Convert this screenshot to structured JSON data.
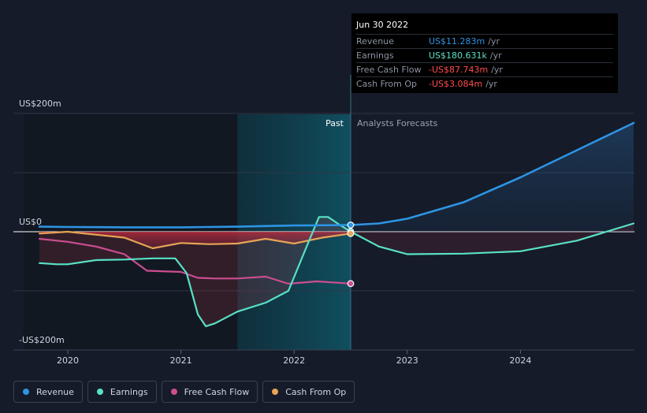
{
  "chart_data": {
    "type": "line",
    "y_ticks": [
      {
        "label": "US$200m",
        "value": 200
      },
      {
        "label": "US$0",
        "value": 0
      },
      {
        "label": "-US$200m",
        "value": -200
      }
    ],
    "x_ticks": [
      "2020",
      "2021",
      "2022",
      "2023",
      "2024"
    ],
    "past_label": "Past",
    "forecast_label": "Analysts Forecasts",
    "highlight_date": 2022.5,
    "series": [
      {
        "name": "Revenue",
        "color": "#2d94e3",
        "x": [
          2019.75,
          2020.0,
          2020.5,
          2021.0,
          2021.5,
          2022.0,
          2022.5
        ],
        "y": [
          8.5,
          8.0,
          7.5,
          7.5,
          8.5,
          10.5,
          11.283
        ],
        "forecast_x": [
          2022.5,
          2022.75,
          2023.0,
          2023.5,
          2024.0,
          2024.5,
          2025.0
        ],
        "forecast_y": [
          11.283,
          14,
          22,
          50,
          92,
          138,
          184
        ]
      },
      {
        "name": "Earnings",
        "color": "#58e1c5",
        "x": [
          2019.75,
          2019.9,
          2020.0,
          2020.25,
          2020.5,
          2020.75,
          2020.95,
          2021.05,
          2021.15,
          2021.22,
          2021.3,
          2021.5,
          2021.75,
          2021.95,
          2022.1,
          2022.22,
          2022.3,
          2022.4,
          2022.5
        ],
        "y": [
          -53,
          -55,
          -55,
          -48,
          -47,
          -45,
          -45,
          -70,
          -140,
          -160,
          -155,
          -135,
          -120,
          -100,
          -30,
          25,
          25,
          12,
          0.18
        ],
        "forecast_x": [
          2022.5,
          2022.75,
          2023.0,
          2023.5,
          2024.0,
          2024.5,
          2025.0
        ],
        "forecast_y": [
          0.18,
          -25,
          -38,
          -37,
          -33,
          -15,
          14
        ]
      },
      {
        "name": "Free Cash Flow",
        "color": "#cb4d90",
        "x": [
          2019.75,
          2020.0,
          2020.25,
          2020.5,
          2020.7,
          2021.0,
          2021.15,
          2021.3,
          2021.5,
          2021.75,
          2021.95,
          2022.2,
          2022.5
        ],
        "y": [
          -12,
          -17,
          -25,
          -38,
          -66,
          -68,
          -78,
          -79,
          -79,
          -76,
          -88,
          -84,
          -87.743
        ]
      },
      {
        "name": "Cash From Op",
        "color": "#e7a456",
        "x": [
          2019.75,
          2020.0,
          2020.25,
          2020.5,
          2020.75,
          2021.0,
          2021.25,
          2021.5,
          2021.75,
          2022.0,
          2022.25,
          2022.5
        ],
        "y": [
          -3,
          0,
          -5,
          -10,
          -28,
          -19,
          -21,
          -20,
          -12,
          -20,
          -10,
          -3.084
        ]
      }
    ]
  },
  "tooltip": {
    "date": "Jun 30 2022",
    "rows": [
      {
        "label": "Revenue",
        "value": "US$11.283m",
        "unit": "/yr",
        "color": "#2d94e3"
      },
      {
        "label": "Earnings",
        "value": "US$180.631k",
        "unit": "/yr",
        "color": "#58e1c5"
      },
      {
        "label": "Free Cash Flow",
        "value": "-US$87.743m",
        "unit": "/yr",
        "color": "#ff4d4d"
      },
      {
        "label": "Cash From Op",
        "value": "-US$3.084m",
        "unit": "/yr",
        "color": "#ff4d4d"
      }
    ]
  },
  "legend": [
    {
      "label": "Revenue",
      "color": "#2d94e3"
    },
    {
      "label": "Earnings",
      "color": "#58e1c5"
    },
    {
      "label": "Free Cash Flow",
      "color": "#cb4d90"
    },
    {
      "label": "Cash From Op",
      "color": "#e7a456"
    }
  ]
}
